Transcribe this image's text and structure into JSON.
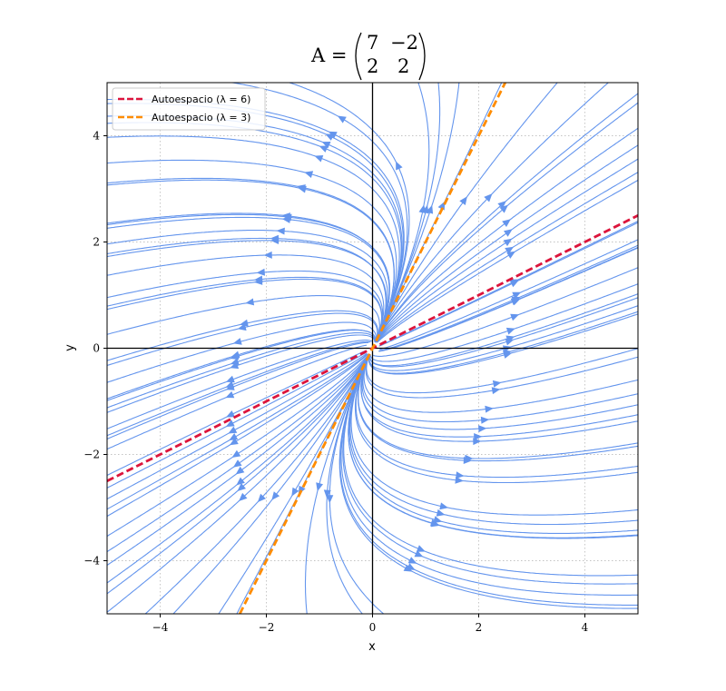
{
  "chart_data": {
    "type": "streamplot",
    "title": {
      "lhs": "A =",
      "matrix": [
        [
          "7",
          "−2"
        ],
        [
          "2",
          "2"
        ]
      ]
    },
    "xlabel": "x",
    "ylabel": "y",
    "xlim": [
      -5,
      5
    ],
    "ylim": [
      -5,
      5
    ],
    "xticks": [
      -4,
      -2,
      0,
      2,
      4
    ],
    "yticks": [
      -4,
      -2,
      0,
      2,
      4
    ],
    "xtick_labels": [
      "−4",
      "−2",
      "0",
      "2",
      "4"
    ],
    "ytick_labels": [
      "−4",
      "−2",
      "0",
      "2",
      "4"
    ],
    "grid": true,
    "matrix_values": [
      [
        7,
        -2
      ],
      [
        2,
        2
      ]
    ],
    "streamline_color": "#6495ED",
    "legend_placement": "upper-left",
    "series": [
      {
        "name": "Autoespacio (λ = 6)",
        "color": "#DC143C",
        "style": "dashed",
        "points": [
          [
            -5,
            -2.5
          ],
          [
            5,
            2.5
          ]
        ]
      },
      {
        "name": "Autoespacio (λ = 3)",
        "color": "#FF8C00",
        "style": "dashed",
        "points": [
          [
            -2.5,
            -5
          ],
          [
            2.5,
            5
          ]
        ]
      }
    ]
  }
}
